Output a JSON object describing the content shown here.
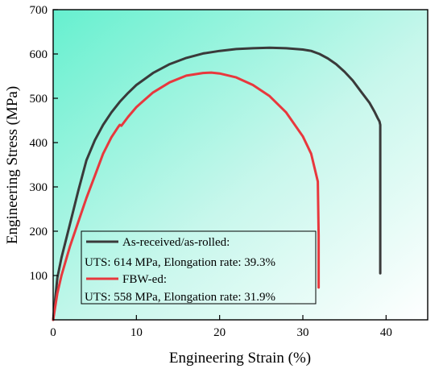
{
  "chart_data": {
    "type": "line",
    "title": "",
    "xlabel": "Engineering Strain (%)",
    "ylabel": "Engineering Stress (MPa)",
    "xlim": [
      0,
      45
    ],
    "ylim": [
      0,
      700
    ],
    "xticks": [
      0,
      10,
      20,
      30,
      40
    ],
    "yticks": [
      100,
      200,
      300,
      400,
      500,
      600,
      700
    ],
    "grid": false,
    "background": "diagonal gradient, aquamarine (top-left) to white (bottom-right)",
    "legend_position": "lower-left",
    "series": [
      {
        "name": "As-received/as-rolled:",
        "note": "UTS: 614 MPa, Elongation rate: 39.3%",
        "color": "#3a3a3a",
        "x": [
          0,
          0.5,
          1,
          2,
          3,
          4,
          5,
          6,
          7,
          8,
          9,
          10,
          12,
          14,
          16,
          18,
          20,
          22,
          24,
          26,
          28,
          30,
          31,
          32,
          33,
          34,
          35,
          36,
          37,
          38,
          38.6,
          39.0,
          39.2,
          39.3,
          39.3
        ],
        "y": [
          0,
          95,
          140,
          215,
          290,
          360,
          405,
          440,
          468,
          492,
          512,
          530,
          557,
          577,
          591,
          601,
          607,
          611,
          613,
          614,
          613,
          610,
          607,
          600,
          590,
          577,
          560,
          540,
          515,
          490,
          470,
          455,
          448,
          440,
          105
        ]
      },
      {
        "name": "FBW-ed:",
        "note": "UTS: 558 MPa, Elongation rate: 31.9%",
        "color": "#e8383d",
        "x": [
          0,
          0.5,
          1,
          2,
          3,
          4,
          5,
          6,
          7,
          7.8,
          8.0,
          8.2,
          9,
          10,
          11,
          12,
          14,
          16,
          18,
          19,
          20,
          22,
          24,
          26,
          28,
          30,
          31,
          31.8,
          31.9,
          31.9
        ],
        "y": [
          0,
          60,
          100,
          165,
          220,
          275,
          325,
          375,
          412,
          435,
          440,
          438,
          458,
          480,
          497,
          513,
          536,
          551,
          557,
          558,
          556,
          547,
          530,
          505,
          468,
          414,
          375,
          312,
          190,
          73
        ]
      }
    ],
    "legend": [
      "As-received/as-rolled:",
      "UTS: 614 MPa, Elongation rate: 39.3%",
      "FBW-ed:",
      "UTS: 558 MPa, Elongation rate: 31.9%"
    ]
  }
}
